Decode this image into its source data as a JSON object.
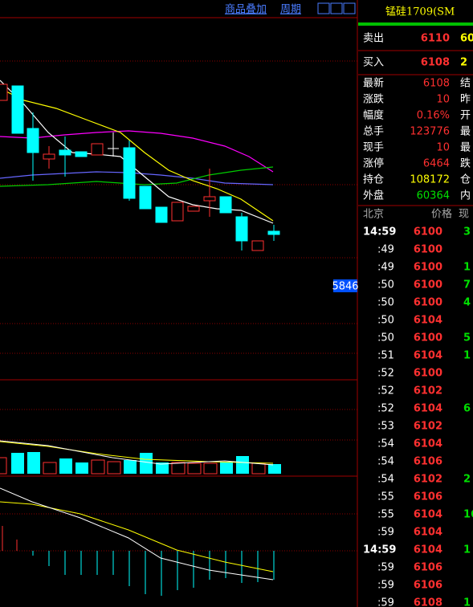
{
  "header": {
    "links": [
      "商品叠加",
      "周期"
    ]
  },
  "chart": {
    "price_label": "5846"
  },
  "quote": {
    "title": "锰硅1709(SM",
    "ask": {
      "label": "卖出",
      "price": 6110,
      "volume": "60"
    },
    "bid": {
      "label": "买入",
      "price": 6108,
      "volume": "2"
    },
    "stats": [
      [
        "最新",
        "6108",
        "结"
      ],
      [
        "涨跌",
        "10",
        "昨"
      ],
      [
        "幅度",
        "0.16%",
        "开"
      ],
      [
        "总手",
        "123776",
        "最"
      ],
      [
        "现手",
        "10",
        "最"
      ],
      [
        "涨停",
        "6464",
        "跌"
      ],
      [
        "持仓",
        "108172",
        "仓"
      ],
      [
        "外盘",
        "60364",
        "内"
      ]
    ]
  },
  "ticks": {
    "header": [
      "北京",
      "价格",
      "现"
    ],
    "rows": [
      {
        "time": "14:59",
        "price": 6100,
        "volume": "3"
      },
      {
        "time": ":49",
        "price": 6100
      },
      {
        "time": ":49",
        "price": 6100,
        "volume": "1"
      },
      {
        "time": ":50",
        "price": 6100,
        "volume": "7"
      },
      {
        "time": ":50",
        "price": 6100,
        "volume": "4"
      },
      {
        "time": ":50",
        "price": 6104
      },
      {
        "time": ":50",
        "price": 6100,
        "volume": "5"
      },
      {
        "time": ":51",
        "price": 6104,
        "volume": "1"
      },
      {
        "time": ":52",
        "price": 6100
      },
      {
        "time": ":52",
        "price": 6102
      },
      {
        "time": ":52",
        "price": 6104,
        "volume": "6"
      },
      {
        "time": ":53",
        "price": 6102
      },
      {
        "time": ":54",
        "price": 6104
      },
      {
        "time": ":54",
        "price": 6106
      },
      {
        "time": ":54",
        "price": 6102,
        "volume": "2"
      },
      {
        "time": ":55",
        "price": 6106
      },
      {
        "time": ":55",
        "price": 6104,
        "volume": "16"
      },
      {
        "time": ":59",
        "price": 6104
      },
      {
        "time": "14:59",
        "price": 6104,
        "volume": "1"
      },
      {
        "time": ":59",
        "price": 6106
      },
      {
        "time": ":59",
        "price": 6106
      },
      {
        "time": ":59",
        "price": 6108,
        "volume": "1"
      }
    ]
  }
}
